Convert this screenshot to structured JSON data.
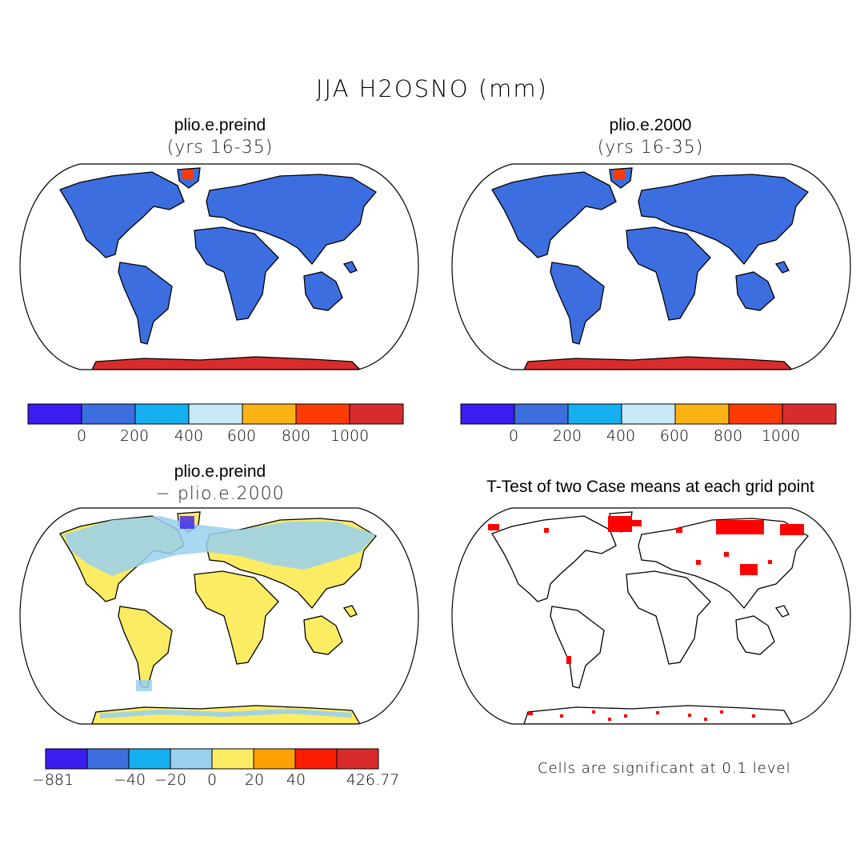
{
  "title": "JJA H2OSNO (mm)",
  "panels": [
    {
      "title": "plio.e.preind",
      "subtitle": "(yrs 16-35)"
    },
    {
      "title": "plio.e.2000",
      "subtitle": "(yrs 16-35)"
    },
    {
      "title": "plio.e.preind",
      "subtitle": "− plio.e.2000"
    },
    {
      "title": "T-Test of two Case means at each grid point",
      "subtitle": ""
    }
  ],
  "colorbars": {
    "absolute": {
      "colors": [
        "#3a1ef0",
        "#3c6ee0",
        "#16b0f0",
        "#c8e8f4",
        "#fcb414",
        "#fc3c04",
        "#d82c2c"
      ],
      "ticks": [
        "0",
        "200",
        "400",
        "600",
        "800",
        "1000"
      ]
    },
    "difference": {
      "colors": [
        "#3a1ef0",
        "#3c6ee0",
        "#16b0f0",
        "#98d0ee",
        "#fcec64",
        "#fca004",
        "#fc1c04",
        "#d82c2c"
      ],
      "ticks": [
        "-881",
        "-40",
        "-20",
        "0",
        "20",
        "40",
        "426.77"
      ]
    }
  },
  "colors": {
    "land_abs": "#3c6ee0",
    "antarctica_abs": "#d82c2c",
    "land_diff": "#fcec64",
    "snow_diff": "#98d0ee",
    "significant": "#ff0000"
  },
  "footnote": "Cells are significant at 0.1 level"
}
